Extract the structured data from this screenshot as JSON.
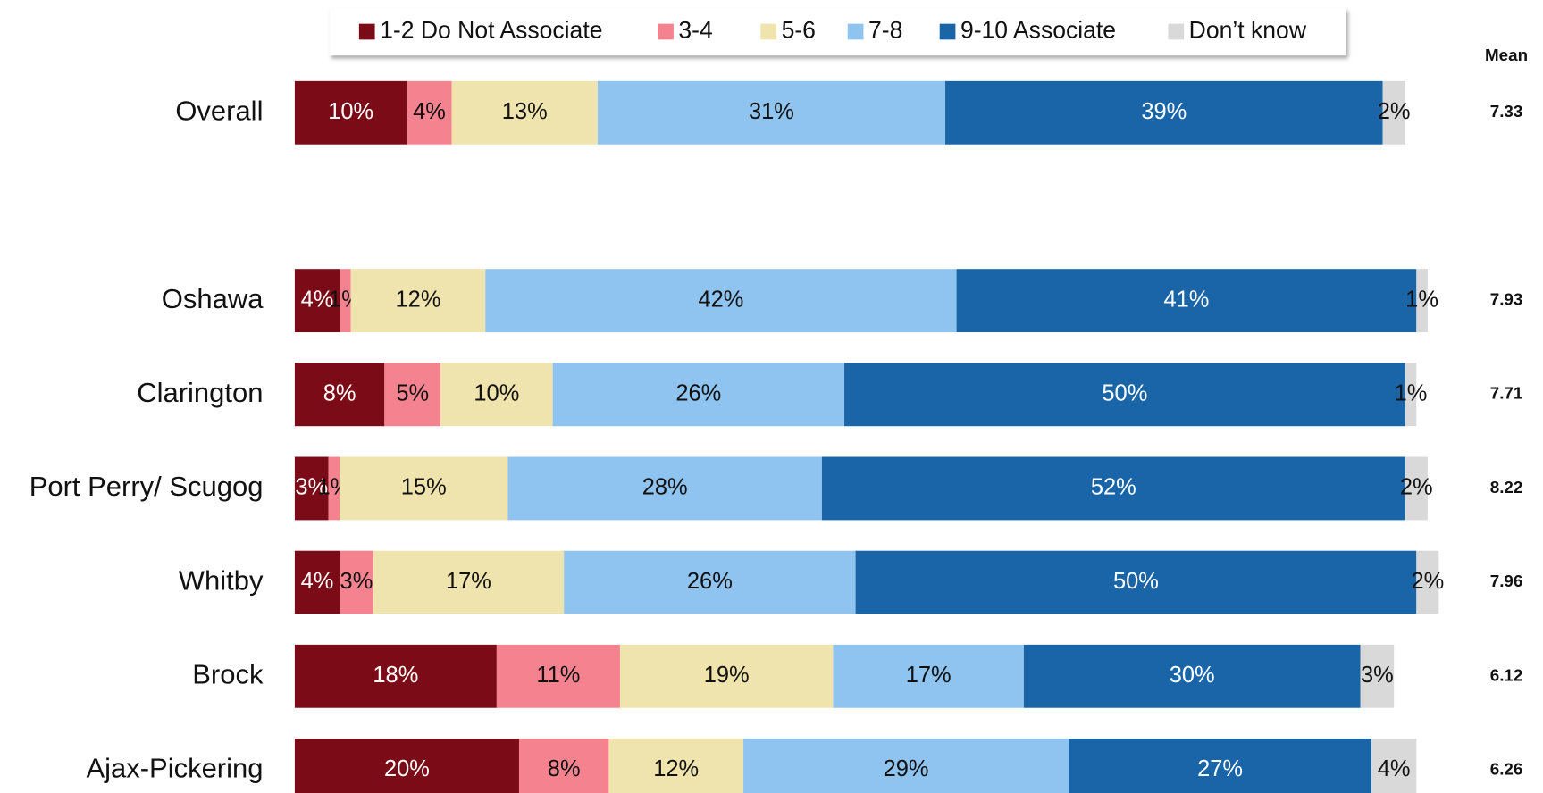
{
  "chart_data": {
    "type": "stacked-bar-horizontal",
    "categories": [
      "Overall",
      "Oshawa",
      "Clarington",
      "Port Perry/ Scugog",
      "Whitby",
      "Brock",
      "Ajax-Pickering"
    ],
    "xlim": [
      0,
      100
    ],
    "series": [
      {
        "name": "1-2 Do Not Associate",
        "color": "#7b0c17",
        "values": [
          10,
          4,
          8,
          3,
          4,
          18,
          20
        ],
        "value_labels": [
          "10%",
          "4%",
          "8%",
          "3%",
          "4%",
          "18%",
          "20%"
        ]
      },
      {
        "name": "3-4",
        "color": "#f4838f",
        "values": [
          4,
          1,
          5,
          1,
          3,
          11,
          8
        ],
        "value_labels": [
          "4%",
          "1%",
          "5%",
          "1%",
          "3%",
          "11%",
          "8%"
        ]
      },
      {
        "name": "5-6",
        "color": "#f0e4ae",
        "values": [
          13,
          12,
          10,
          15,
          17,
          19,
          12
        ],
        "value_labels": [
          "13%",
          "12%",
          "10%",
          "15%",
          "17%",
          "19%",
          "12%"
        ]
      },
      {
        "name": "7-8",
        "color": "#8fc3f0",
        "values": [
          31,
          42,
          26,
          28,
          26,
          17,
          29
        ],
        "value_labels": [
          "31%",
          "42%",
          "26%",
          "28%",
          "26%",
          "17%",
          "29%"
        ]
      },
      {
        "name": "9-10 Associate",
        "color": "#1a64a8",
        "values": [
          39,
          41,
          50,
          52,
          50,
          30,
          27
        ],
        "value_labels": [
          "39%",
          "41%",
          "50%",
          "52%",
          "50%",
          "30%",
          "27%"
        ]
      },
      {
        "name": "Don’t know",
        "color": "#d9d9d9",
        "values": [
          2,
          1,
          1,
          2,
          2,
          3,
          4
        ],
        "value_labels": [
          "2%",
          "1%",
          "1%",
          "2%",
          "2%",
          "3%",
          "4%"
        ]
      }
    ],
    "mean_label": "Mean",
    "means": [
      7.33,
      7.93,
      7.71,
      8.22,
      7.96,
      6.12,
      6.26
    ]
  }
}
